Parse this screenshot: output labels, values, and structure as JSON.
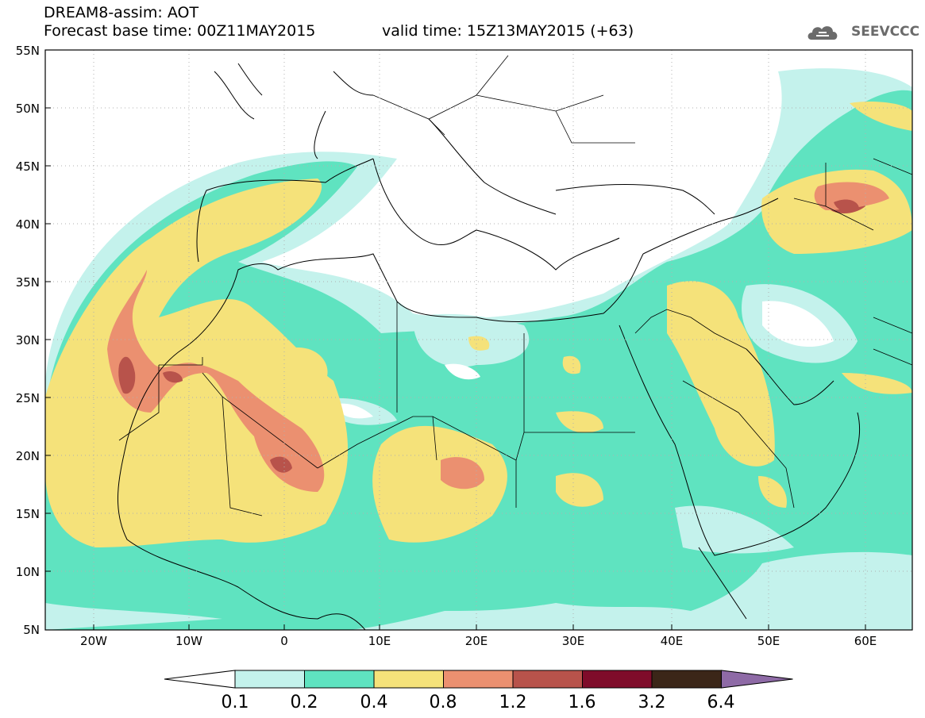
{
  "header": {
    "model_line": "DREAM8-assim: AOT",
    "base_time_line": "Forecast base time: 00Z11MAY2015",
    "valid_time_line": "valid time: 15Z13MAY2015 (+63)"
  },
  "logo": {
    "text": "SEEVCCC",
    "icon": "cloud-icon"
  },
  "axes": {
    "lat_labels": [
      "55N",
      "50N",
      "45N",
      "40N",
      "35N",
      "30N",
      "25N",
      "20N",
      "15N",
      "10N",
      "5N"
    ],
    "lon_labels": [
      "20W",
      "10W",
      "0",
      "10E",
      "20E",
      "30E",
      "40E",
      "50E",
      "60E"
    ]
  },
  "colorbar": {
    "labels": [
      "0.1",
      "0.2",
      "0.4",
      "0.8",
      "1.2",
      "1.6",
      "3.2",
      "6.4"
    ],
    "colors": [
      "#ffffff",
      "#c4f2ec",
      "#5fe3c0",
      "#f5e27a",
      "#eb9070",
      "#b8534b",
      "#7f0c2a",
      "#3b2618",
      "#8e6aa6"
    ]
  },
  "palette": {
    "c1": "#c4f2ec",
    "c2": "#5fe3c0",
    "c3": "#f5e27a",
    "c4": "#eb9070",
    "c5": "#b8534b"
  }
}
